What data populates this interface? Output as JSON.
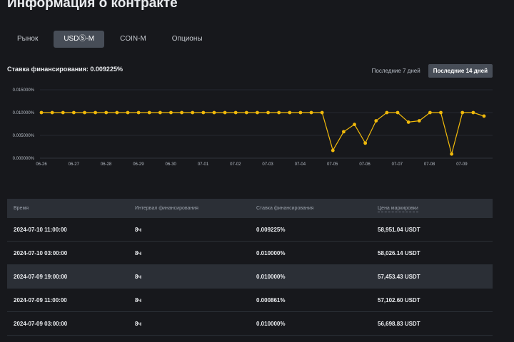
{
  "page_title": "Информация о контракте",
  "tabs": [
    {
      "label": "Рынок",
      "active": false
    },
    {
      "label": "USDⓈ-M",
      "active": true
    },
    {
      "label": "COIN-M",
      "active": false
    },
    {
      "label": "Опционы",
      "active": false
    }
  ],
  "funding_rate_label": "Ставка финансирования: 0.009225%",
  "range_buttons": [
    {
      "label": "Последние 7 дней",
      "active": false
    },
    {
      "label": "Последние 14 дней",
      "active": true
    }
  ],
  "colors": {
    "accent": "#f0b90b",
    "background": "#17181c",
    "panel": "#2b2f36"
  },
  "chart_data": {
    "type": "line",
    "y_ticks": [
      "0.015000%",
      "0.010000%",
      "0.005000%",
      "0.000000%"
    ],
    "y_tick_values": [
      0.015,
      0.01,
      0.005,
      0
    ],
    "ylim": [
      0,
      0.015
    ],
    "grid": true,
    "x_ticks": [
      "06-26",
      "06-27",
      "06-28",
      "06-29",
      "06-30",
      "07-01",
      "07-02",
      "07-03",
      "07-04",
      "07-05",
      "07-06",
      "07-07",
      "07-08",
      "07-09"
    ],
    "series": [
      {
        "values": [
          0.01,
          0.01,
          0.01,
          0.01,
          0.01,
          0.01,
          0.01,
          0.01,
          0.01,
          0.01,
          0.01,
          0.01,
          0.01,
          0.01,
          0.01,
          0.01,
          0.01,
          0.01,
          0.01,
          0.01,
          0.01,
          0.01,
          0.01,
          0.01,
          0.01,
          0.01,
          0.01,
          0.0017,
          0.0058,
          0.0074,
          0.0033,
          0.0082,
          0.01,
          0.01,
          0.0079,
          0.0082,
          0.01,
          0.01,
          0.0009,
          0.01,
          0.01,
          0.009225
        ]
      }
    ]
  },
  "table": {
    "headers": [
      "Время",
      "Интервал финансирования",
      "Ставка финансирования",
      "Цена маркировки"
    ],
    "rows": [
      {
        "time": "2024-07-10 11:00:00",
        "interval": "8ч",
        "rate": "0.009225%",
        "price": "58,951.04 USDT"
      },
      {
        "time": "2024-07-10 03:00:00",
        "interval": "8ч",
        "rate": "0.010000%",
        "price": "58,026.14 USDT"
      },
      {
        "time": "2024-07-09 19:00:00",
        "interval": "8ч",
        "rate": "0.010000%",
        "price": "57,453.43 USDT"
      },
      {
        "time": "2024-07-09 11:00:00",
        "interval": "8ч",
        "rate": "0.000861%",
        "price": "57,102.60 USDT"
      },
      {
        "time": "2024-07-09 03:00:00",
        "interval": "8ч",
        "rate": "0.010000%",
        "price": "56,698.83 USDT"
      }
    ]
  }
}
